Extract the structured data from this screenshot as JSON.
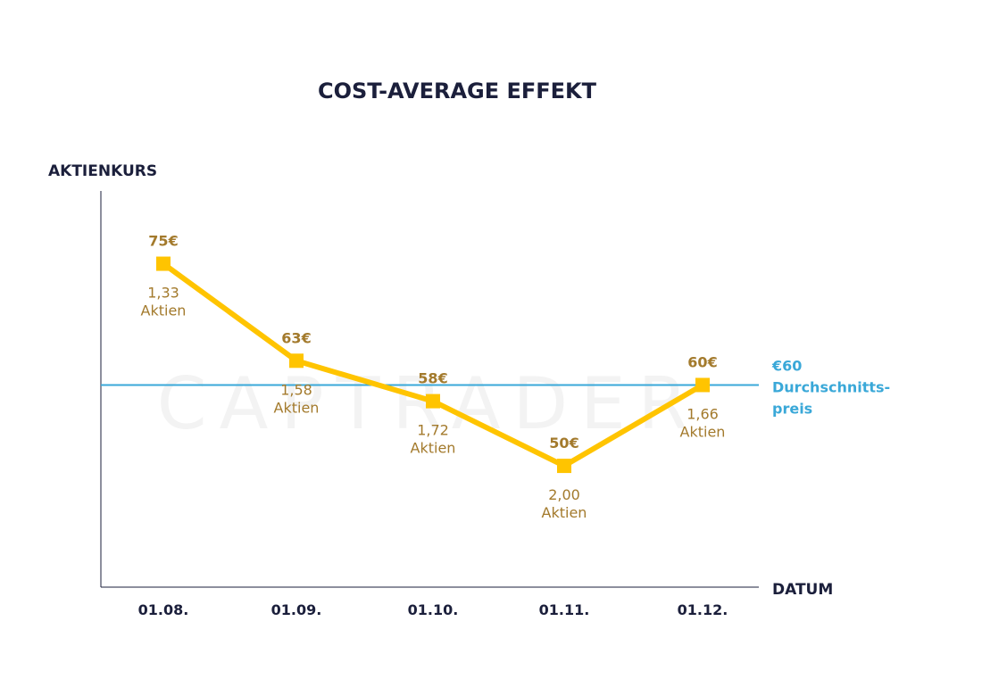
{
  "watermark": "CAPTRADER",
  "colors": {
    "title": "#1b1f3b",
    "line": "#ffc400",
    "label": "#a37a2c",
    "average": "#3aa8d8",
    "watermark": "#f3f3f3"
  },
  "chart_data": {
    "type": "line",
    "title": "COST-AVERAGE EFFEKT",
    "ylabel": "AKTIENKURS",
    "xlabel": "DATUM",
    "categories": [
      "01.08.",
      "01.09.",
      "01.10.",
      "01.11.",
      "01.12."
    ],
    "ylim": [
      35,
      84
    ],
    "grid": false,
    "series": [
      {
        "values": [
          75,
          63,
          58,
          50,
          60
        ],
        "price_labels": [
          "75€",
          "63€",
          "58€",
          "50€",
          "60€"
        ],
        "share_counts": [
          "1,33",
          "1,58",
          "1,72",
          "2,00",
          "1,66"
        ],
        "share_unit": "Aktien"
      }
    ],
    "reference_line": {
      "value": 60,
      "label": "€60",
      "description_lines": [
        "Durchschnitts-",
        "preis"
      ]
    }
  }
}
